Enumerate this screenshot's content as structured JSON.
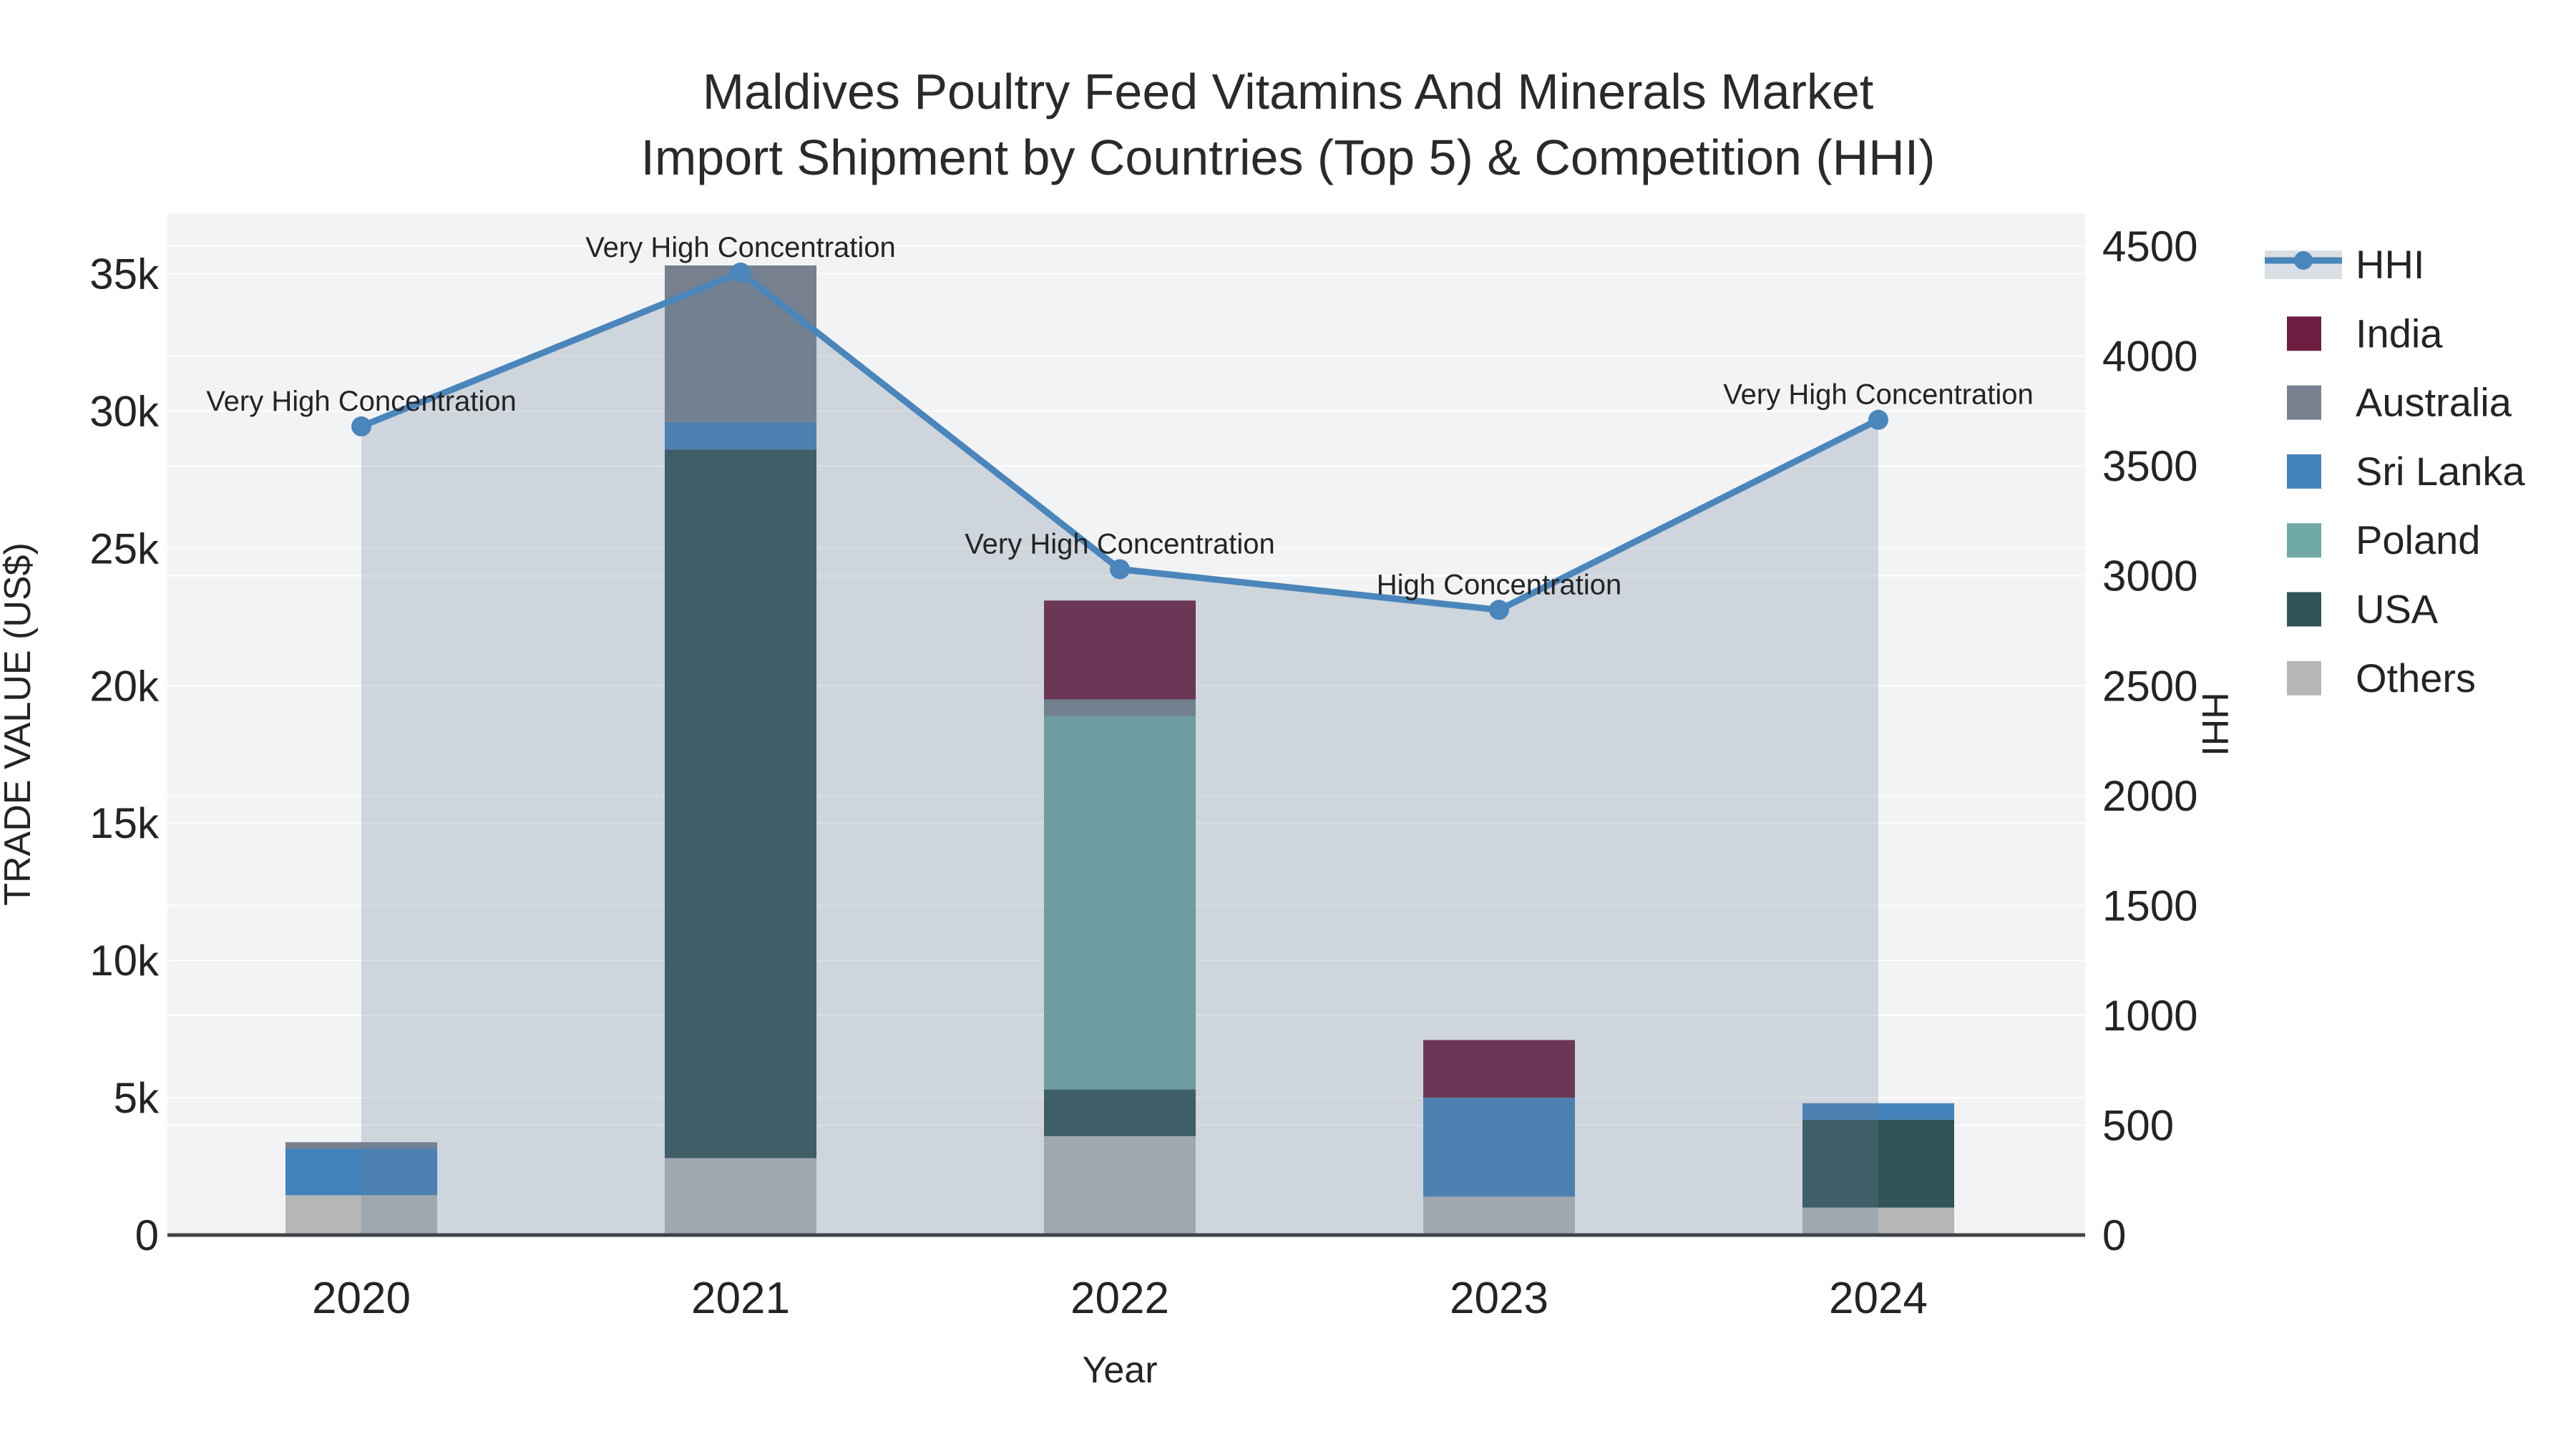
{
  "title": {
    "line1": "Maldives Poultry Feed Vitamins And Minerals Market",
    "line2": "Import Shipment by Countries (Top 5) & Competition (HHI)"
  },
  "chart_data": {
    "type": "bar+line",
    "title": "Maldives Poultry Feed Vitamins And Minerals Market Import Shipment by Countries (Top 5) & Competition (HHI)",
    "categories": [
      "2020",
      "2021",
      "2022",
      "2023",
      "2024"
    ],
    "bar_stack_order_note": "series listed bottom-to-top of stack",
    "series": [
      {
        "name": "Others",
        "type": "bar",
        "color": "#b4b6b8",
        "values": [
          1450,
          2800,
          3600,
          1400,
          1000
        ]
      },
      {
        "name": "USA",
        "type": "bar",
        "color": "#305458",
        "values": [
          0,
          25800,
          1700,
          0,
          3200
        ]
      },
      {
        "name": "Poland",
        "type": "bar",
        "color": "#70a8a5",
        "values": [
          0,
          0,
          13600,
          0,
          0
        ]
      },
      {
        "name": "Sri Lanka",
        "type": "bar",
        "color": "#4382ba",
        "values": [
          1700,
          1000,
          0,
          3600,
          600
        ]
      },
      {
        "name": "Australia",
        "type": "bar",
        "color": "#76808e",
        "values": [
          230,
          5700,
          600,
          0,
          0
        ]
      },
      {
        "name": "India",
        "type": "bar",
        "color": "#6e1e41",
        "values": [
          0,
          0,
          3600,
          2100,
          0
        ]
      }
    ],
    "bar_totals": [
      3380,
      35300,
      23100,
      7100,
      4800
    ],
    "line_series": {
      "name": "HHI",
      "color": "#4a86bb",
      "area_fill": "rgba(106,128,152,0.26)",
      "legend_band_color": "#dadfe5",
      "values": [
        3680,
        4380,
        3030,
        2845,
        3710
      ]
    },
    "annotations": [
      {
        "category": "2020",
        "text": "Very High Concentration"
      },
      {
        "category": "2021",
        "text": "Very High Concentration"
      },
      {
        "category": "2022",
        "text": "Very High Concentration"
      },
      {
        "category": "2023",
        "text": "High Concentration"
      },
      {
        "category": "2024",
        "text": "Very High Concentration"
      }
    ],
    "x_axis": {
      "title": "Year",
      "tick_labels": [
        "2020",
        "2021",
        "2022",
        "2023",
        "2024"
      ]
    },
    "left_axis": {
      "title": "TRADE VALUE (US$)",
      "tick_values": [
        0,
        5000,
        10000,
        15000,
        20000,
        25000,
        30000,
        35000
      ],
      "tick_labels": [
        "0",
        "5k",
        "10k",
        "15k",
        "20k",
        "25k",
        "30k",
        "35k"
      ],
      "range": [
        0,
        37200
      ]
    },
    "right_axis": {
      "title": "HHI",
      "tick_values": [
        0,
        500,
        1000,
        1500,
        2000,
        2500,
        3000,
        3500,
        4000,
        4500
      ],
      "tick_labels": [
        "0",
        "500",
        "1000",
        "1500",
        "2000",
        "2500",
        "3000",
        "3500",
        "4000",
        "4500"
      ],
      "range": [
        0,
        4650
      ]
    },
    "legend": {
      "position": "right",
      "items": [
        {
          "name": "HHI",
          "swatch": "line-band"
        },
        {
          "name": "India",
          "swatch": "square",
          "color": "#6e1e41"
        },
        {
          "name": "Australia",
          "swatch": "square",
          "color": "#76808e"
        },
        {
          "name": "Sri Lanka",
          "swatch": "square",
          "color": "#4382ba"
        },
        {
          "name": "Poland",
          "swatch": "square",
          "color": "#70a8a5"
        },
        {
          "name": "USA",
          "swatch": "square",
          "color": "#305458"
        },
        {
          "name": "Others",
          "swatch": "square",
          "color": "#b4b6b8"
        }
      ]
    },
    "style": {
      "plot_background": "#f2f3f4",
      "gridline_color": "#ffffff",
      "axis_line_color": "#3f4347",
      "text_color": "#242424"
    }
  }
}
